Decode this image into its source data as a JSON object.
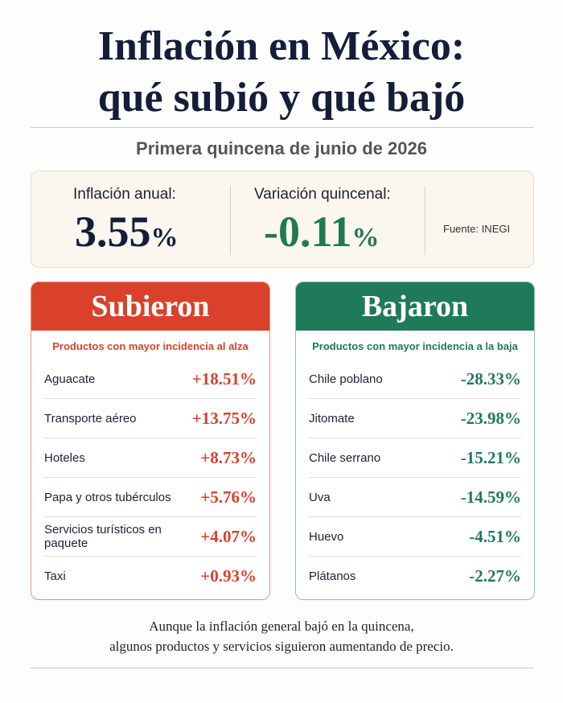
{
  "header": {
    "title_lines": [
      "Inflación en México:",
      "qué subió y qué bajó"
    ],
    "subtitle": "Primera quincena de junio de 2026"
  },
  "stats": [
    {
      "label": "Inflación anual:",
      "value": "3.55",
      "unit": "%"
    },
    {
      "label": "Variación quincenal:",
      "value": "-0.11",
      "unit": "%"
    }
  ],
  "source": "Fuente: INEGI",
  "panels": [
    {
      "title": "Subieron",
      "caption": "Productos con mayor incidencia al alza",
      "items": [
        {
          "name": "Aguacate",
          "change": "+18.51%"
        },
        {
          "name": "Transporte aéreo",
          "change": "+13.75%"
        },
        {
          "name": "Hoteles",
          "change": "+8.73%"
        },
        {
          "name": "Papa y otros tubérculos",
          "change": "+5.76%"
        },
        {
          "name": "Servicios turísticos en paquete",
          "change": "+4.07%"
        },
        {
          "name": "Taxi",
          "change": "+0.93%"
        }
      ]
    },
    {
      "title": "Bajaron",
      "caption": "Productos con mayor incidencia a la baja",
      "items": [
        {
          "name": "Chile poblano",
          "change": "-28.33%"
        },
        {
          "name": "Jitomate",
          "change": "-23.98%"
        },
        {
          "name": "Chile serrano",
          "change": "-15.21%"
        },
        {
          "name": "Uva",
          "change": "-14.59%"
        },
        {
          "name": "Huevo",
          "change": "-4.51%"
        },
        {
          "name": "Plátanos",
          "change": "-2.27%"
        }
      ]
    }
  ],
  "footer": [
    "Aunque la inflación general bajó en la quincena,",
    "algunos productos y servicios siguieron aumentando de precio."
  ]
}
